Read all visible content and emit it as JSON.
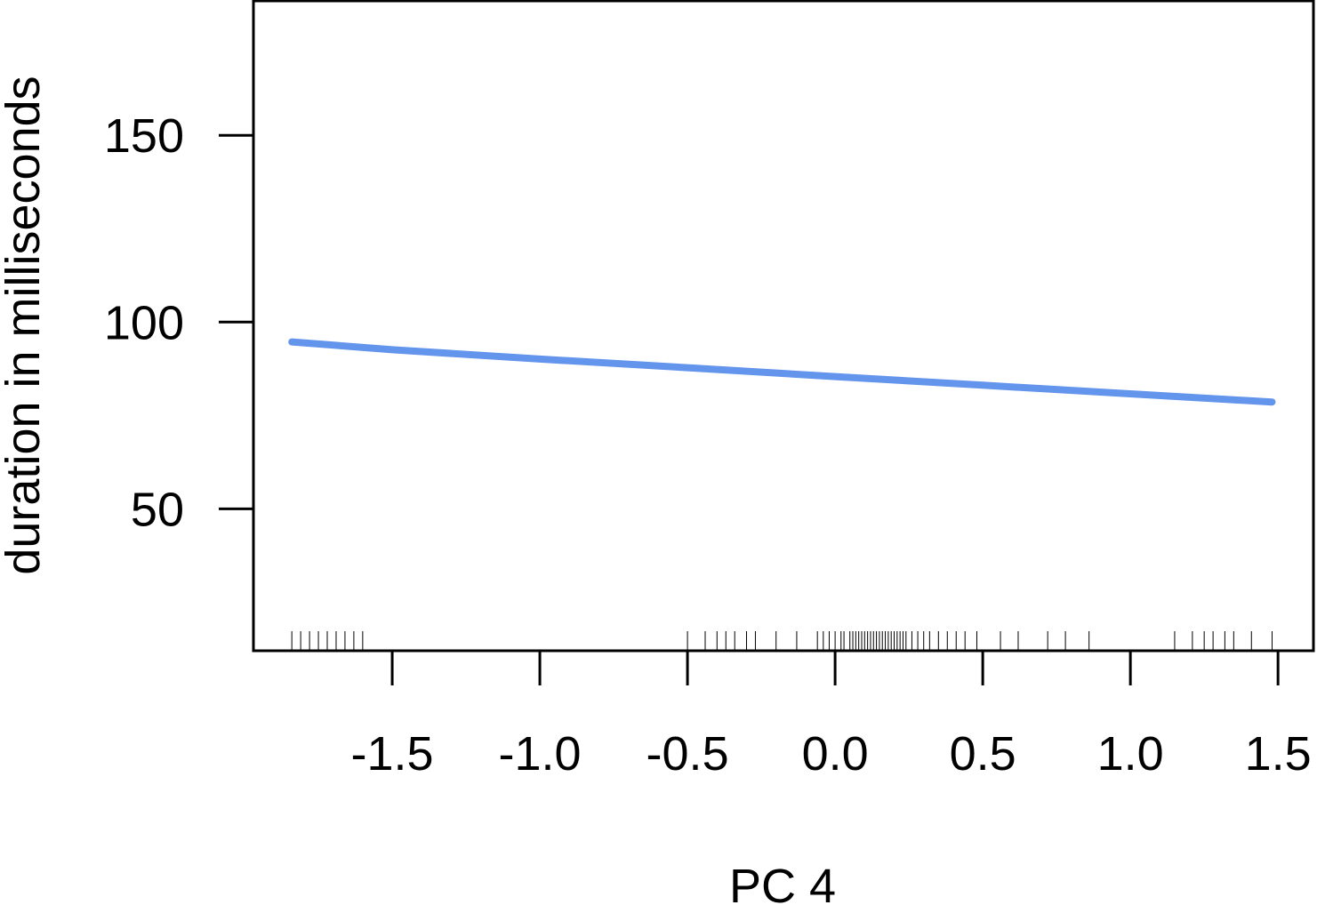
{
  "chart_data": {
    "type": "line",
    "title": "",
    "xlabel": "PC 4",
    "ylabel": "duration in milliseconds",
    "xlim": [
      -1.97,
      1.62
    ],
    "ylim": [
      12,
      186
    ],
    "x_ticks": [
      -1.5,
      -1.0,
      -0.5,
      0.0,
      0.5,
      1.0,
      1.5
    ],
    "x_tick_labels": [
      "-1.5",
      "-1.0",
      "-0.5",
      "0.0",
      "0.5",
      "1.0",
      "1.5"
    ],
    "y_ticks": [
      50,
      100,
      150
    ],
    "y_tick_labels": [
      "50",
      "100",
      "150"
    ],
    "grid": false,
    "legend": "none",
    "series": [
      {
        "color": "#6495ed",
        "x": [
          -1.84,
          -1.5,
          -1.0,
          -0.5,
          0.0,
          0.5,
          1.0,
          1.48
        ],
        "values": [
          94.7,
          92.6,
          90.1,
          87.8,
          85.4,
          83.1,
          80.8,
          78.6
        ]
      }
    ],
    "rug": [
      -1.84,
      -1.81,
      -1.78,
      -1.75,
      -1.72,
      -1.69,
      -1.66,
      -1.63,
      -1.6,
      -0.5,
      -0.44,
      -0.4,
      -0.37,
      -0.34,
      -0.3,
      -0.27,
      -0.2,
      -0.13,
      -0.06,
      -0.04,
      -0.02,
      0.0,
      0.02,
      0.03,
      0.05,
      0.06,
      0.07,
      0.08,
      0.09,
      0.1,
      0.11,
      0.12,
      0.13,
      0.14,
      0.15,
      0.16,
      0.17,
      0.18,
      0.19,
      0.2,
      0.21,
      0.22,
      0.23,
      0.24,
      0.26,
      0.28,
      0.3,
      0.32,
      0.35,
      0.38,
      0.41,
      0.44,
      0.48,
      0.56,
      0.62,
      0.72,
      0.78,
      0.86,
      1.15,
      1.21,
      1.25,
      1.28,
      1.32,
      1.35,
      1.41,
      1.48
    ],
    "line_color": "#6495ed",
    "axis_color": "#000000"
  }
}
